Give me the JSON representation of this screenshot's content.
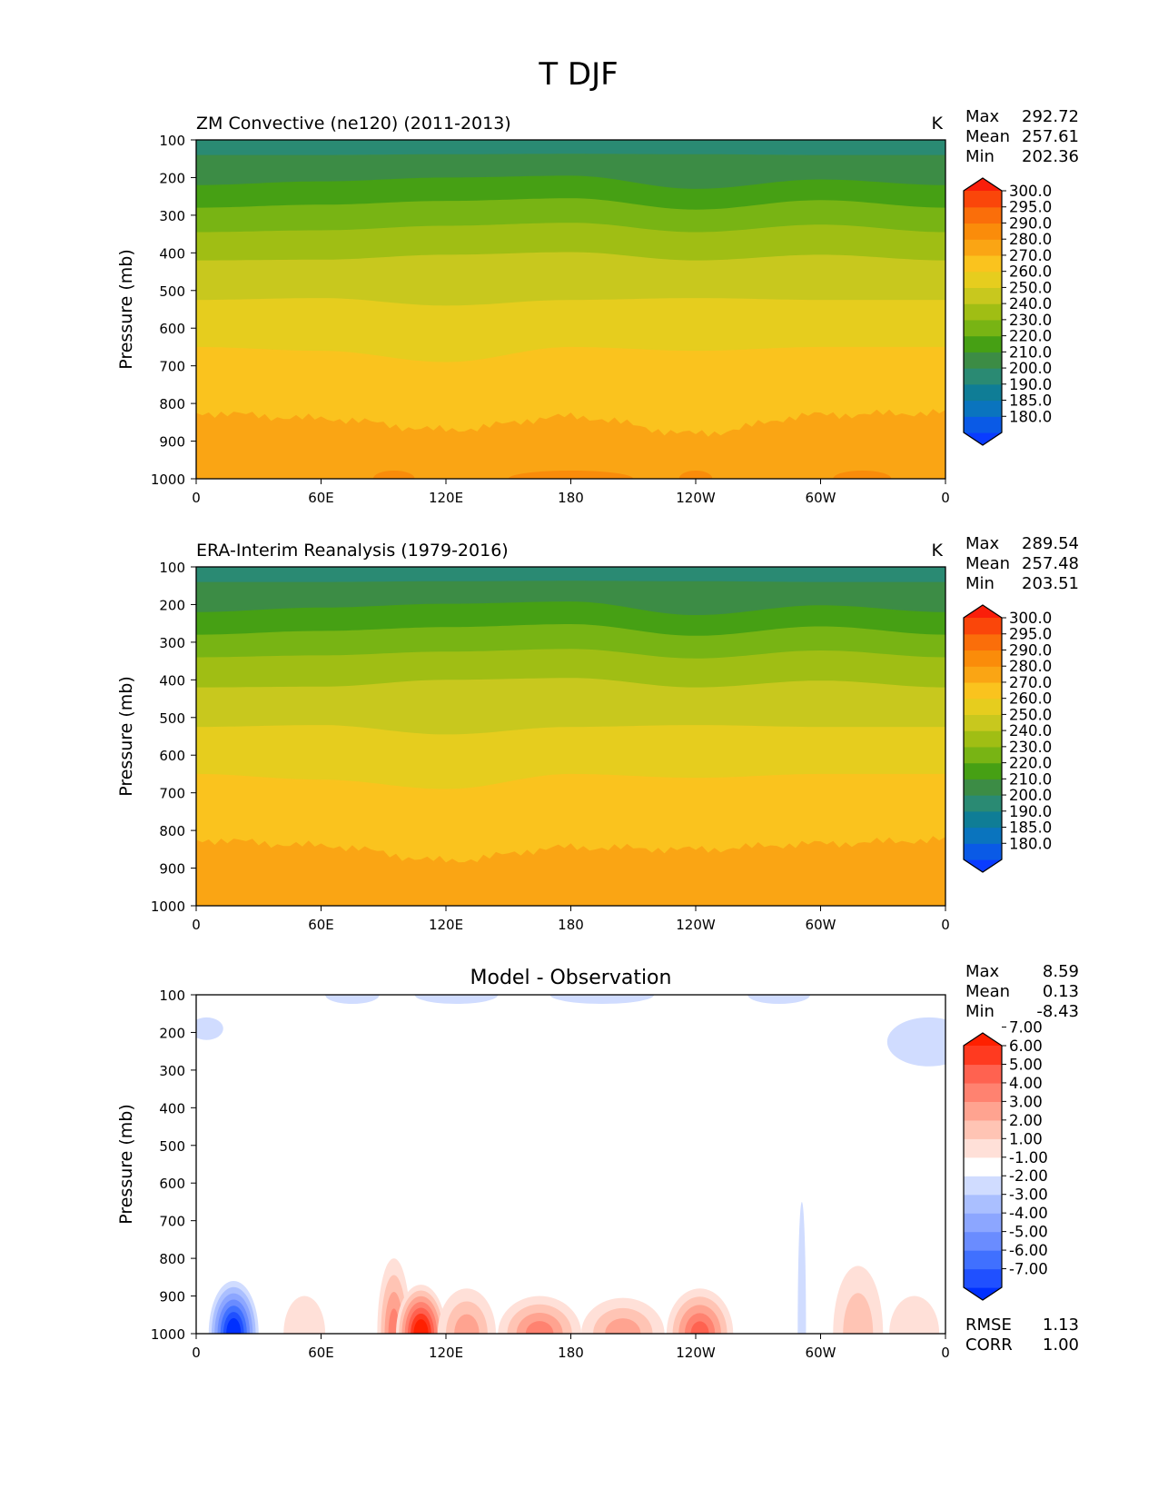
{
  "figure": {
    "title": "T DJF"
  },
  "colorbar_levels": {
    "temperature": [
      "180.0",
      "185.0",
      "190.0",
      "200.0",
      "210.0",
      "220.0",
      "230.0",
      "240.0",
      "250.0",
      "260.0",
      "270.0",
      "280.0",
      "290.0",
      "295.0",
      "300.0"
    ],
    "difference": [
      "-7.00",
      "-6.00",
      "-5.00",
      "-4.00",
      "-3.00",
      "-2.00",
      "-1.00",
      "1.00",
      "2.00",
      "3.00",
      "4.00",
      "5.00",
      "6.00",
      "7.00"
    ]
  },
  "colors": {
    "temperature": [
      "#0a3cff",
      "#0a5ae6",
      "#0a74be",
      "#0f7d96",
      "#2a8a73",
      "#3c8c45",
      "#46a014",
      "#78b414",
      "#a0be14",
      "#c8c81e",
      "#e6cd1e",
      "#fac31e",
      "#faa514",
      "#fa8c0a",
      "#fa6e0a",
      "#fa460a",
      "#fa1e0a"
    ],
    "difference": [
      "#0030ff",
      "#2050ff",
      "#4070ff",
      "#6a8cff",
      "#8ca6ff",
      "#aabfff",
      "#d0dcff",
      "#ffffff",
      "#ffe0d8",
      "#ffc4b4",
      "#ffa390",
      "#ff8270",
      "#ff6250",
      "#ff3a20",
      "#ff2000"
    ]
  },
  "chart_data": [
    {
      "type": "heatmap",
      "panel": "model",
      "title": "ZM Convective (ne120) (2011-2013)",
      "units": "K",
      "ylabel": "Pressure (mb)",
      "xlabel": "",
      "x_ticks": [
        "0",
        "60E",
        "120E",
        "180",
        "120W",
        "60W",
        "0"
      ],
      "y_ticks": [
        "100",
        "200",
        "300",
        "400",
        "500",
        "600",
        "700",
        "800",
        "900",
        "1000"
      ],
      "ylim": [
        1000,
        100
      ],
      "stats": {
        "max_label": "Max",
        "max": "292.72",
        "mean_label": "Mean",
        "mean": "257.61",
        "min_label": "Min",
        "min": "202.36"
      },
      "x_sample": [
        0,
        60,
        120,
        180,
        240,
        300,
        360
      ],
      "boundaries": [
        {
          "level": 210,
          "p": [
            140,
            140,
            138,
            137,
            138,
            140,
            140
          ]
        },
        {
          "level": 220,
          "p": [
            220,
            210,
            200,
            195,
            230,
            205,
            220
          ]
        },
        {
          "level": 230,
          "p": [
            280,
            272,
            262,
            255,
            285,
            260,
            280
          ]
        },
        {
          "level": 240,
          "p": [
            345,
            340,
            328,
            320,
            345,
            325,
            345
          ]
        },
        {
          "level": 250,
          "p": [
            420,
            418,
            405,
            398,
            420,
            405,
            420
          ]
        },
        {
          "level": 260,
          "p": [
            525,
            520,
            540,
            525,
            520,
            525,
            525
          ]
        },
        {
          "level": 270,
          "p": [
            650,
            660,
            690,
            650,
            660,
            650,
            650
          ]
        },
        {
          "level": 280,
          "p": [
            825,
            840,
            870,
            835,
            880,
            830,
            825
          ]
        }
      ]
    },
    {
      "type": "heatmap",
      "panel": "observation",
      "title": "ERA-Interim Reanalysis (1979-2016)",
      "units": "K",
      "ylabel": "Pressure (mb)",
      "xlabel": "",
      "x_ticks": [
        "0",
        "60E",
        "120E",
        "180",
        "120W",
        "60W",
        "0"
      ],
      "y_ticks": [
        "100",
        "200",
        "300",
        "400",
        "500",
        "600",
        "700",
        "800",
        "900",
        "1000"
      ],
      "ylim": [
        1000,
        100
      ],
      "stats": {
        "max_label": "Max",
        "max": "289.54",
        "mean_label": "Mean",
        "mean": "257.48",
        "min_label": "Min",
        "min": "203.51"
      },
      "x_sample": [
        0,
        60,
        120,
        180,
        240,
        300,
        360
      ],
      "boundaries": [
        {
          "level": 210,
          "p": [
            140,
            140,
            138,
            137,
            138,
            140,
            140
          ]
        },
        {
          "level": 220,
          "p": [
            220,
            208,
            198,
            192,
            228,
            202,
            220
          ]
        },
        {
          "level": 230,
          "p": [
            280,
            270,
            260,
            252,
            283,
            258,
            280
          ]
        },
        {
          "level": 240,
          "p": [
            340,
            335,
            325,
            318,
            343,
            322,
            340
          ]
        },
        {
          "level": 250,
          "p": [
            420,
            418,
            400,
            395,
            420,
            402,
            420
          ]
        },
        {
          "level": 260,
          "p": [
            525,
            520,
            545,
            525,
            520,
            525,
            525
          ]
        },
        {
          "level": 270,
          "p": [
            650,
            665,
            690,
            650,
            660,
            650,
            650
          ]
        },
        {
          "level": 280,
          "p": [
            825,
            840,
            880,
            845,
            850,
            835,
            825
          ]
        }
      ]
    },
    {
      "type": "heatmap",
      "panel": "difference",
      "title": "Model - Observation",
      "units": "",
      "ylabel": "Pressure (mb)",
      "xlabel": "",
      "x_ticks": [
        "0",
        "60E",
        "120E",
        "180",
        "120W",
        "60W",
        "0"
      ],
      "y_ticks": [
        "100",
        "200",
        "300",
        "400",
        "500",
        "600",
        "700",
        "800",
        "900",
        "1000"
      ],
      "ylim": [
        1000,
        100
      ],
      "stats": {
        "max_label": "Max",
        "max": "8.59",
        "mean_label": "Mean",
        "mean": "0.13",
        "min_label": "Min",
        "min": "-8.43"
      },
      "metrics": {
        "rmse_label": "RMSE",
        "rmse": "1.13",
        "corr_label": "CORR",
        "corr": "1.00"
      },
      "blobs": [
        {
          "lon": 18,
          "p0": 1000,
          "p1": 860,
          "half_width": 12,
          "min": -8.4
        },
        {
          "lon": 52,
          "p0": 1000,
          "p1": 900,
          "half_width": 10,
          "min": 1.5
        },
        {
          "lon": 95,
          "p0": 1000,
          "p1": 800,
          "half_width": 8,
          "min": 4.0
        },
        {
          "lon": 108,
          "p0": 1000,
          "p1": 870,
          "half_width": 12,
          "min": 8.5
        },
        {
          "lon": 130,
          "p0": 1000,
          "p1": 880,
          "half_width": 14,
          "min": 3.5
        },
        {
          "lon": 165,
          "p0": 1000,
          "p1": 900,
          "half_width": 20,
          "min": 4.5
        },
        {
          "lon": 205,
          "p0": 1000,
          "p1": 905,
          "half_width": 20,
          "min": 3.5
        },
        {
          "lon": 242,
          "p0": 1000,
          "p1": 880,
          "half_width": 16,
          "min": 5.0
        },
        {
          "lon": 291,
          "p0": 1000,
          "p1": 650,
          "half_width": 2,
          "min": -1.5
        },
        {
          "lon": 318,
          "p0": 1000,
          "p1": 820,
          "half_width": 12,
          "min": 2.5
        },
        {
          "lon": 345,
          "p0": 1000,
          "p1": 900,
          "half_width": 12,
          "min": 1.5
        },
        {
          "lon": 352,
          "p0": 160,
          "p1": 290,
          "half_width": 20,
          "min": -1.5
        },
        {
          "lon": 5,
          "p0": 160,
          "p1": 220,
          "half_width": 8,
          "min": -1.5
        }
      ]
    }
  ]
}
